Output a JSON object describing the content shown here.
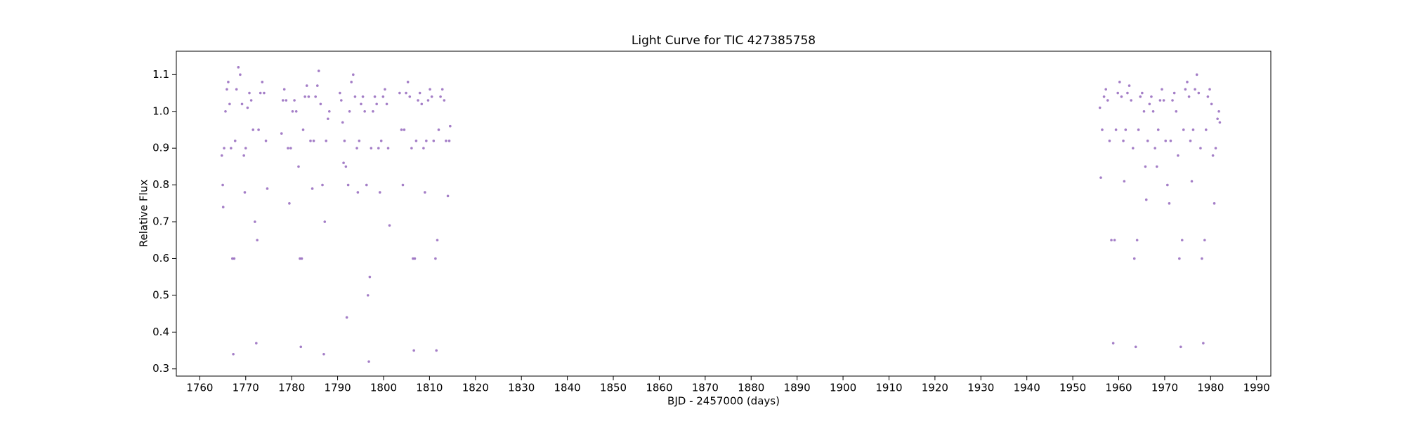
{
  "chart_data": {
    "type": "scatter",
    "title": "Light Curve for TIC 427385758",
    "x_label": "BJD - 2457000 (days)",
    "y_label": "Relative Flux",
    "color": "#9467bd",
    "grid": false,
    "xlim": [
      1754.9,
      1993.1
    ],
    "ylim": [
      0.2804,
      1.1636
    ],
    "xticks": [
      1760,
      1770,
      1780,
      1790,
      1800,
      1810,
      1820,
      1830,
      1840,
      1850,
      1860,
      1870,
      1880,
      1890,
      1900,
      1910,
      1920,
      1930,
      1940,
      1950,
      1960,
      1970,
      1980,
      1990
    ],
    "yticks": [
      0.3,
      0.4,
      0.5,
      0.6,
      0.7,
      0.8,
      0.9,
      {
        "value": 1,
        "label": "1.0"
      },
      1.1
    ],
    "x": [
      1764.8,
      1765.0,
      1765.1,
      1765.3,
      1765.6,
      1765.9,
      1766.2,
      1766.5,
      1766.8,
      1767.1,
      1767.3,
      1767.5,
      1767.7,
      1768.0,
      1768.4,
      1768.8,
      1769.2,
      1769.6,
      1769.8,
      1770.0,
      1770.4,
      1770.8,
      1771.2,
      1771.6,
      1772.0,
      1772.3,
      1772.5,
      1772.8,
      1773.2,
      1773.6,
      1774.0,
      1774.4,
      1774.7,
      1777.8,
      1778.1,
      1778.4,
      1778.8,
      1779.2,
      1779.5,
      1779.8,
      1780.2,
      1780.6,
      1781.0,
      1781.5,
      1781.8,
      1782.0,
      1782.2,
      1782.5,
      1782.9,
      1783.3,
      1783.7,
      1784.1,
      1784.5,
      1784.8,
      1785.2,
      1785.6,
      1785.9,
      1786.3,
      1786.7,
      1787.0,
      1787.2,
      1787.5,
      1787.9,
      1788.2,
      1790.5,
      1790.8,
      1791.1,
      1791.3,
      1791.5,
      1791.8,
      1792.0,
      1792.3,
      1792.6,
      1793.0,
      1793.4,
      1793.8,
      1794.2,
      1794.4,
      1794.7,
      1795.1,
      1795.5,
      1795.9,
      1796.3,
      1796.6,
      1796.8,
      1797.0,
      1797.3,
      1797.7,
      1798.1,
      1798.5,
      1798.9,
      1799.2,
      1799.5,
      1799.9,
      1800.3,
      1800.7,
      1801.0,
      1801.3,
      1803.5,
      1803.9,
      1804.2,
      1804.5,
      1804.9,
      1805.3,
      1805.7,
      1806.1,
      1806.4,
      1806.6,
      1806.8,
      1807.1,
      1807.5,
      1807.9,
      1808.3,
      1808.7,
      1809.0,
      1809.3,
      1809.7,
      1810.1,
      1810.5,
      1810.9,
      1811.3,
      1811.5,
      1811.7,
      1812.0,
      1812.4,
      1812.8,
      1813.2,
      1813.6,
      1814.0,
      1814.3,
      1814.5,
      1955.9,
      1956.1,
      1956.4,
      1956.8,
      1957.2,
      1957.6,
      1958.0,
      1958.4,
      1958.8,
      1959.1,
      1959.4,
      1959.8,
      1960.2,
      1960.6,
      1961.0,
      1961.2,
      1961.5,
      1961.9,
      1962.3,
      1962.7,
      1963.1,
      1963.4,
      1963.7,
      1964.0,
      1964.3,
      1964.7,
      1965.1,
      1965.5,
      1965.8,
      1966.0,
      1966.3,
      1966.7,
      1967.1,
      1967.5,
      1967.9,
      1968.3,
      1968.6,
      1969.0,
      1969.4,
      1969.8,
      1970.2,
      1970.6,
      1971.0,
      1971.3,
      1971.7,
      1972.1,
      1972.5,
      1972.9,
      1973.2,
      1973.5,
      1973.8,
      1974.1,
      1974.5,
      1974.9,
      1975.3,
      1975.6,
      1975.9,
      1976.2,
      1976.6,
      1977.0,
      1977.4,
      1977.8,
      1978.1,
      1978.4,
      1978.7,
      1979.0,
      1979.4,
      1979.8,
      1980.2,
      1980.5,
      1980.8,
      1981.1,
      1981.5,
      1981.8,
      1982.0
    ],
    "values": [
      0.88,
      0.8,
      0.74,
      0.9,
      1.0,
      1.06,
      1.08,
      1.02,
      0.9,
      0.6,
      0.34,
      0.6,
      0.92,
      1.06,
      1.12,
      1.1,
      1.02,
      0.88,
      0.78,
      0.9,
      1.01,
      1.05,
      1.03,
      0.95,
      0.7,
      0.37,
      0.65,
      0.95,
      1.05,
      1.08,
      1.05,
      0.92,
      0.79,
      0.94,
      1.03,
      1.06,
      1.03,
      0.9,
      0.75,
      0.9,
      1.0,
      1.03,
      1.0,
      0.85,
      0.6,
      0.36,
      0.6,
      0.95,
      1.04,
      1.07,
      1.04,
      0.92,
      0.79,
      0.92,
      1.04,
      1.07,
      1.11,
      1.02,
      0.8,
      0.34,
      0.7,
      0.92,
      0.98,
      1.0,
      1.05,
      1.03,
      0.97,
      0.86,
      0.92,
      0.85,
      0.44,
      0.8,
      1.0,
      1.08,
      1.1,
      1.04,
      0.9,
      0.78,
      0.92,
      1.02,
      1.04,
      1.0,
      0.8,
      0.5,
      0.32,
      0.55,
      0.9,
      1.0,
      1.04,
      1.02,
      0.9,
      0.78,
      0.92,
      1.04,
      1.06,
      1.02,
      0.9,
      0.69,
      1.05,
      0.95,
      0.8,
      0.95,
      1.05,
      1.08,
      1.04,
      0.9,
      0.6,
      0.35,
      0.6,
      0.92,
      1.03,
      1.05,
      1.02,
      0.9,
      0.78,
      0.92,
      1.03,
      1.06,
      1.04,
      0.92,
      0.6,
      0.35,
      0.65,
      0.95,
      1.04,
      1.06,
      1.03,
      0.92,
      0.77,
      0.92,
      0.96,
      1.01,
      0.82,
      0.95,
      1.04,
      1.06,
      1.03,
      0.92,
      0.65,
      0.37,
      0.65,
      0.95,
      1.05,
      1.08,
      1.04,
      0.92,
      0.81,
      0.95,
      1.05,
      1.07,
      1.03,
      0.9,
      0.6,
      0.36,
      0.65,
      0.95,
      1.04,
      1.05,
      1.0,
      0.85,
      0.76,
      0.92,
      1.02,
      1.04,
      1.0,
      0.9,
      0.85,
      0.95,
      1.03,
      1.06,
      1.03,
      0.92,
      0.8,
      0.75,
      0.92,
      1.03,
      1.05,
      1.0,
      0.88,
      0.6,
      0.36,
      0.65,
      0.95,
      1.06,
      1.08,
      1.04,
      0.92,
      0.81,
      0.95,
      1.06,
      1.1,
      1.05,
      0.9,
      0.6,
      0.37,
      0.65,
      0.95,
      1.04,
      1.06,
      1.02,
      0.88,
      0.75,
      0.9,
      0.98,
      1.0,
      0.97
    ]
  }
}
